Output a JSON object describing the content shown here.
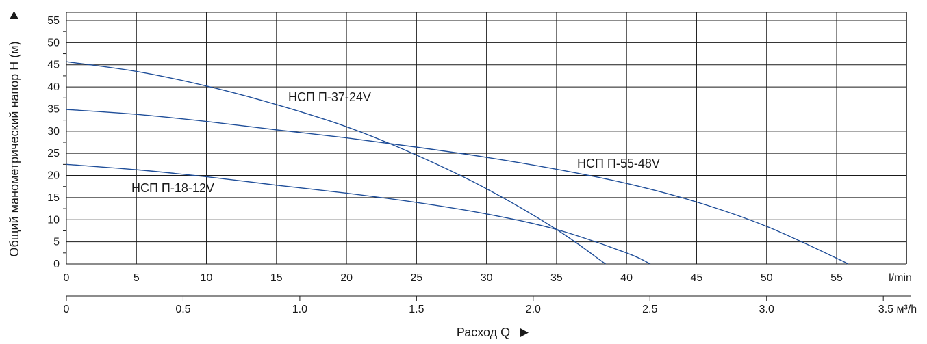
{
  "chart_data": {
    "type": "line",
    "xlabel_units": "l/min",
    "x2label_units": "3.5 м³/h",
    "xlabel": "Расход Q",
    "ylabel": "Общий манометрический напор H (м)",
    "xlim": [
      0,
      60
    ],
    "ylim": [
      0,
      55
    ],
    "x_ticks": [
      "0",
      "5",
      "10",
      "15",
      "20",
      "25",
      "30",
      "35",
      "40",
      "45",
      "50",
      "55"
    ],
    "y_ticks": [
      "0",
      "5",
      "10",
      "15",
      "20",
      "25",
      "30",
      "35",
      "40",
      "45",
      "50",
      "55"
    ],
    "x2_ticks": [
      "0",
      "0.5",
      "1.0",
      "1.5",
      "2.0",
      "2.5",
      "3.0"
    ],
    "x2_tick_values": [
      0,
      0.5,
      1.0,
      1.5,
      2.0,
      2.5,
      3.0,
      3.5
    ],
    "grid": true,
    "curve_color": "#1f4e99",
    "series": [
      {
        "name": "НСП П-37-24V",
        "x": [
          0,
          5,
          10,
          15,
          20,
          25,
          30,
          35,
          38.5
        ],
        "y": [
          45.7,
          43.5,
          40.2,
          36.0,
          31.0,
          24.6,
          17.0,
          7.8,
          0
        ]
      },
      {
        "name": "НСП П-55-48V",
        "x": [
          0,
          5,
          10,
          15,
          20,
          25,
          30,
          35,
          40,
          45,
          50,
          55,
          55.8
        ],
        "y": [
          34.9,
          33.8,
          32.2,
          30.3,
          28.5,
          26.4,
          24.1,
          21.4,
          18.2,
          14.0,
          8.5,
          1.3,
          0
        ]
      },
      {
        "name": "НСП П-18-12V",
        "x": [
          0,
          5,
          10,
          15,
          20,
          25,
          30,
          35,
          40,
          41.7
        ],
        "y": [
          22.5,
          21.3,
          19.7,
          17.8,
          16.0,
          13.9,
          11.3,
          7.8,
          2.5,
          0
        ]
      }
    ]
  },
  "labels": {
    "series1": "НСП П-37-24V",
    "series2": "НСП П-55-48V",
    "series3": "НСП П-18-12V"
  }
}
